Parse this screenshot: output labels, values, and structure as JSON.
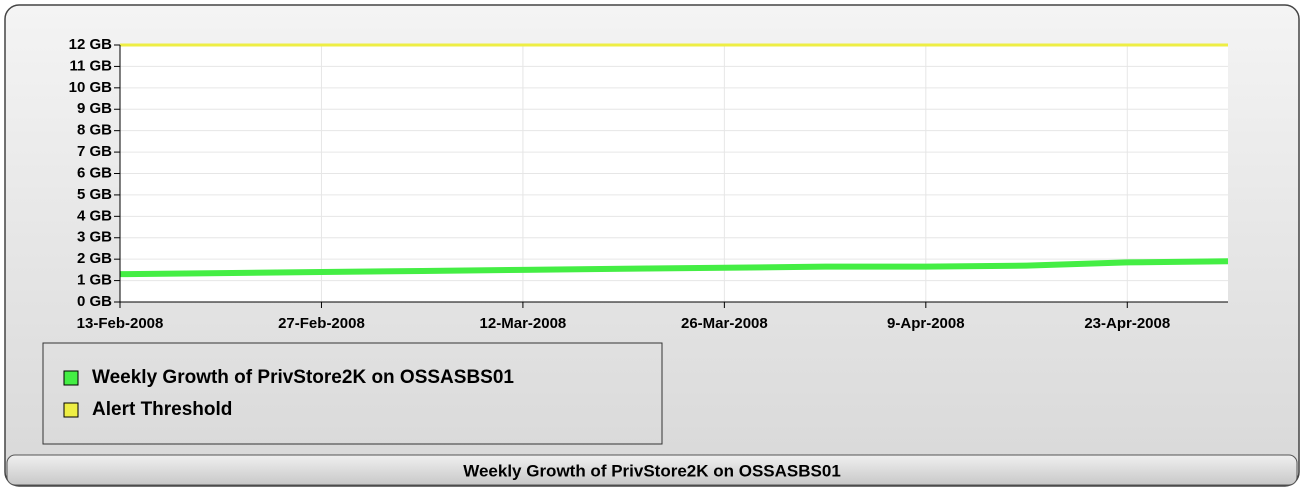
{
  "chart_data": {
    "type": "line",
    "title": "Weekly Growth of PrivStore2K on OSSASBS01",
    "x": [
      "13-Feb-2008",
      "20-Feb-2008",
      "27-Feb-2008",
      "5-Mar-2008",
      "12-Mar-2008",
      "19-Mar-2008",
      "26-Mar-2008",
      "2-Apr-2008",
      "9-Apr-2008",
      "16-Apr-2008",
      "23-Apr-2008",
      "30-Apr-2008"
    ],
    "series": [
      {
        "name": "Weekly Growth of PrivStore2K on OSSASBS01",
        "color": "#44ee44",
        "values": [
          1.3,
          1.35,
          1.4,
          1.45,
          1.5,
          1.55,
          1.6,
          1.65,
          1.65,
          1.7,
          1.85,
          1.9
        ]
      },
      {
        "name": "Alert Threshold",
        "color": "#eeee44",
        "values": [
          12,
          12,
          12,
          12,
          12,
          12,
          12,
          12,
          12,
          12,
          12,
          12
        ]
      }
    ],
    "xlim": [
      "13-Feb-2008",
      "30-Apr-2008"
    ],
    "xticks": [
      "13-Feb-2008",
      "27-Feb-2008",
      "12-Mar-2008",
      "26-Mar-2008",
      "9-Apr-2008",
      "23-Apr-2008"
    ],
    "ylim": [
      0,
      12
    ],
    "yticks": [
      {
        "value": 0,
        "label": "0 GB"
      },
      {
        "value": 1,
        "label": "1 GB"
      },
      {
        "value": 2,
        "label": "2 GB"
      },
      {
        "value": 3,
        "label": "3 GB"
      },
      {
        "value": 4,
        "label": "4 GB"
      },
      {
        "value": 5,
        "label": "5 GB"
      },
      {
        "value": 6,
        "label": "6 GB"
      },
      {
        "value": 7,
        "label": "7 GB"
      },
      {
        "value": 8,
        "label": "8 GB"
      },
      {
        "value": 9,
        "label": "9 GB"
      },
      {
        "value": 10,
        "label": "10 GB"
      },
      {
        "value": 11,
        "label": "11 GB"
      },
      {
        "value": 12,
        "label": "12 GB"
      }
    ],
    "grid": true
  }
}
